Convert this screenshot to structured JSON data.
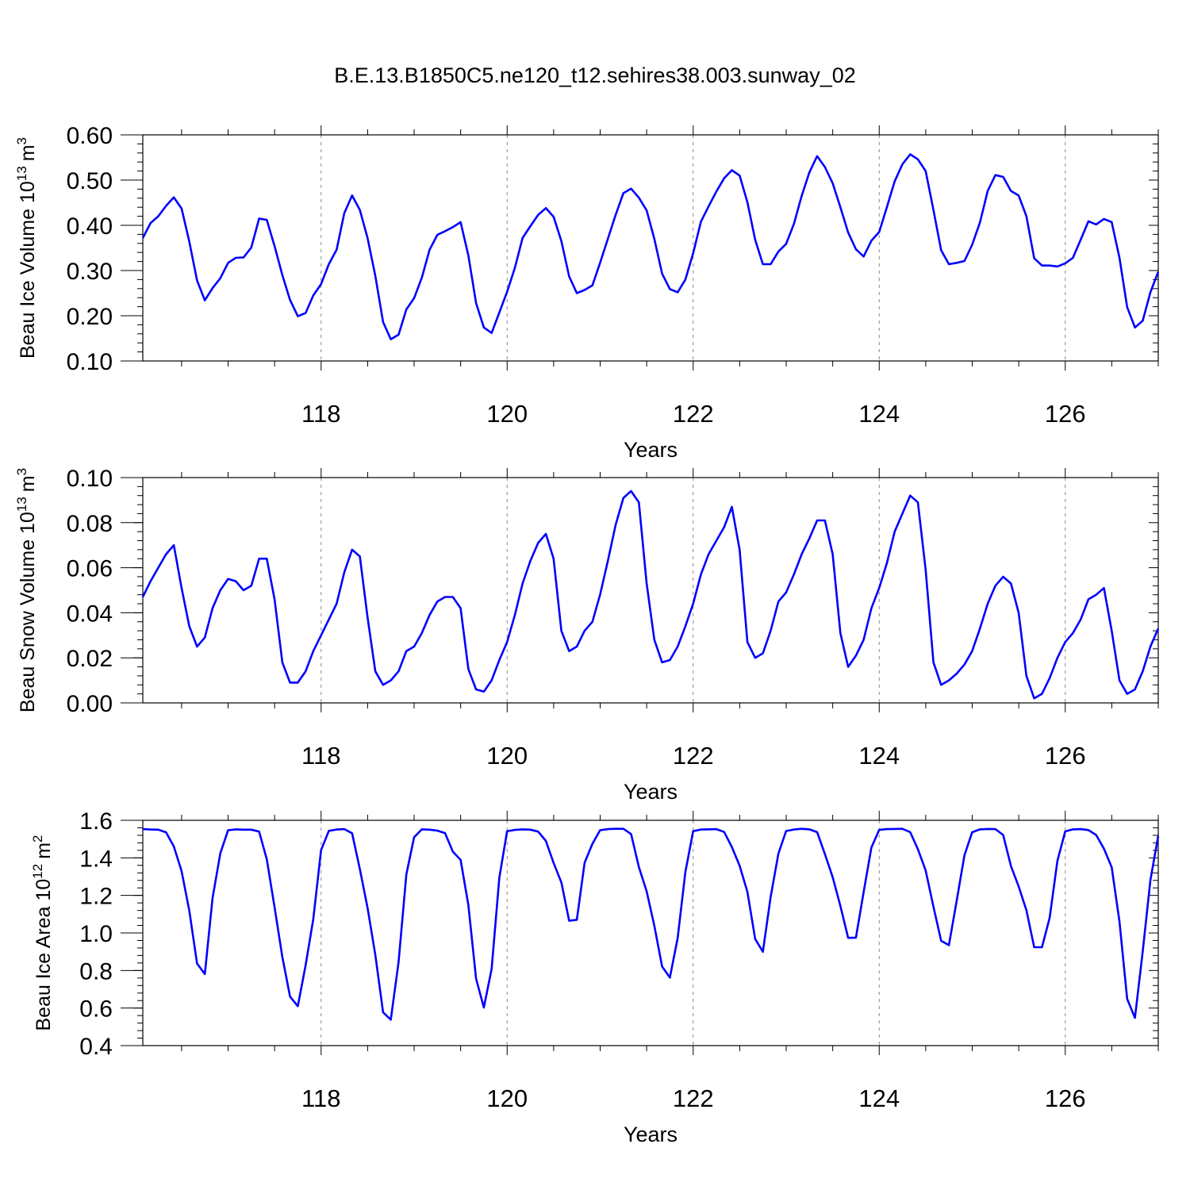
{
  "figure": {
    "title": "B.E.13.B1850C5.ne120_t12.sehires38.003.sunway_02",
    "line_color": "#0000ff",
    "grid_color": "#888888"
  },
  "chart_data": [
    {
      "type": "line",
      "title": "",
      "xlabel": "Years",
      "ylabel": "Beau Ice Volume 10",
      "ylabel_exp": "13",
      "ylabel_unit": "m",
      "ylabel_unit_exp": "3",
      "xlim": [
        116.083,
        127.0
      ],
      "ylim": [
        0.1,
        0.6
      ],
      "xticks": [
        118,
        120,
        122,
        124,
        126
      ],
      "xticklabels": [
        "118",
        "120",
        "122",
        "124",
        "126"
      ],
      "yticks": [
        0.1,
        0.2,
        0.3,
        0.4,
        0.5,
        0.6
      ],
      "yticklabels": [
        "0.10",
        "0.20",
        "0.30",
        "0.40",
        "0.50",
        "0.60"
      ],
      "grid_x": true,
      "x_start": 116.083,
      "x_step": 0.08333,
      "values": [
        0.372,
        0.405,
        0.42,
        0.443,
        0.462,
        0.437,
        0.364,
        0.278,
        0.234,
        0.261,
        0.283,
        0.317,
        0.328,
        0.329,
        0.351,
        0.415,
        0.412,
        0.354,
        0.29,
        0.235,
        0.199,
        0.206,
        0.245,
        0.27,
        0.314,
        0.346,
        0.427,
        0.466,
        0.434,
        0.372,
        0.288,
        0.186,
        0.148,
        0.158,
        0.214,
        0.239,
        0.284,
        0.346,
        0.379,
        0.387,
        0.396,
        0.407,
        0.333,
        0.228,
        0.174,
        0.162,
        0.207,
        0.253,
        0.306,
        0.372,
        0.398,
        0.423,
        0.438,
        0.419,
        0.365,
        0.287,
        0.25,
        0.257,
        0.267,
        0.317,
        0.37,
        0.423,
        0.471,
        0.481,
        0.461,
        0.433,
        0.37,
        0.293,
        0.259,
        0.252,
        0.28,
        0.338,
        0.408,
        0.442,
        0.475,
        0.504,
        0.522,
        0.51,
        0.451,
        0.368,
        0.314,
        0.314,
        0.342,
        0.359,
        0.403,
        0.465,
        0.517,
        0.553,
        0.529,
        0.493,
        0.44,
        0.384,
        0.347,
        0.331,
        0.366,
        0.385,
        0.44,
        0.497,
        0.535,
        0.557,
        0.546,
        0.52,
        0.434,
        0.345,
        0.314,
        0.317,
        0.321,
        0.357,
        0.406,
        0.476,
        0.511,
        0.507,
        0.476,
        0.466,
        0.42,
        0.327,
        0.311,
        0.311,
        0.309,
        0.316,
        0.328,
        0.368,
        0.409,
        0.402,
        0.414,
        0.407,
        0.328,
        0.219,
        0.174,
        0.189,
        0.252,
        0.297
      ]
    },
    {
      "type": "line",
      "title": "",
      "xlabel": "Years",
      "ylabel": "Beau Snow Volume 10",
      "ylabel_exp": "13",
      "ylabel_unit": "m",
      "ylabel_unit_exp": "3",
      "xlim": [
        116.083,
        127.0
      ],
      "ylim": [
        0.0,
        0.1
      ],
      "xticks": [
        118,
        120,
        122,
        124,
        126
      ],
      "xticklabels": [
        "118",
        "120",
        "122",
        "124",
        "126"
      ],
      "yticks": [
        0.0,
        0.02,
        0.04,
        0.06,
        0.08,
        0.1
      ],
      "yticklabels": [
        "0.00",
        "0.02",
        "0.04",
        "0.06",
        "0.08",
        "0.10"
      ],
      "grid_x": true,
      "x_start": 116.083,
      "x_step": 0.08333,
      "values": [
        0.047,
        0.054,
        0.06,
        0.066,
        0.07,
        0.051,
        0.034,
        0.025,
        0.029,
        0.042,
        0.05,
        0.055,
        0.054,
        0.05,
        0.052,
        0.064,
        0.064,
        0.046,
        0.018,
        0.009,
        0.009,
        0.014,
        0.023,
        0.03,
        0.037,
        0.044,
        0.058,
        0.068,
        0.065,
        0.038,
        0.014,
        0.008,
        0.01,
        0.014,
        0.023,
        0.025,
        0.031,
        0.039,
        0.045,
        0.047,
        0.047,
        0.042,
        0.015,
        0.006,
        0.005,
        0.01,
        0.019,
        0.027,
        0.039,
        0.053,
        0.063,
        0.071,
        0.075,
        0.064,
        0.032,
        0.023,
        0.025,
        0.032,
        0.036,
        0.048,
        0.063,
        0.079,
        0.091,
        0.094,
        0.089,
        0.053,
        0.028,
        0.018,
        0.019,
        0.025,
        0.034,
        0.044,
        0.057,
        0.066,
        0.072,
        0.078,
        0.087,
        0.068,
        0.027,
        0.02,
        0.022,
        0.032,
        0.045,
        0.049,
        0.057,
        0.066,
        0.073,
        0.081,
        0.081,
        0.066,
        0.031,
        0.016,
        0.021,
        0.028,
        0.042,
        0.051,
        0.062,
        0.076,
        0.084,
        0.092,
        0.089,
        0.059,
        0.018,
        0.008,
        0.01,
        0.013,
        0.017,
        0.023,
        0.033,
        0.044,
        0.052,
        0.056,
        0.053,
        0.04,
        0.012,
        0.002,
        0.004,
        0.011,
        0.02,
        0.027,
        0.031,
        0.037,
        0.046,
        0.048,
        0.051,
        0.032,
        0.01,
        0.004,
        0.006,
        0.014,
        0.025,
        0.033
      ]
    },
    {
      "type": "line",
      "title": "",
      "xlabel": "Years",
      "ylabel": "Beau Ice Area 10",
      "ylabel_exp": "12",
      "ylabel_unit": "m",
      "ylabel_unit_exp": "2",
      "xlim": [
        116.083,
        127.0
      ],
      "ylim": [
        0.4,
        1.6
      ],
      "xticks": [
        118,
        120,
        122,
        124,
        126
      ],
      "xticklabels": [
        "118",
        "120",
        "122",
        "124",
        "126"
      ],
      "yticks": [
        0.4,
        0.6,
        0.8,
        1.0,
        1.2,
        1.4,
        1.6
      ],
      "yticklabels": [
        "0.4",
        "0.6",
        "0.8",
        "1.0",
        "1.2",
        "1.4",
        "1.6"
      ],
      "grid_x": true,
      "x_start": 116.083,
      "x_step": 0.08333,
      "values": [
        1.553,
        1.551,
        1.55,
        1.536,
        1.461,
        1.329,
        1.119,
        0.837,
        0.781,
        1.185,
        1.424,
        1.547,
        1.552,
        1.55,
        1.55,
        1.54,
        1.392,
        1.137,
        0.872,
        0.661,
        0.61,
        0.827,
        1.074,
        1.441,
        1.544,
        1.551,
        1.553,
        1.531,
        1.34,
        1.134,
        0.883,
        0.577,
        0.538,
        0.845,
        1.312,
        1.51,
        1.552,
        1.55,
        1.545,
        1.532,
        1.433,
        1.389,
        1.148,
        0.756,
        0.603,
        0.808,
        1.294,
        1.542,
        1.549,
        1.552,
        1.55,
        1.54,
        1.49,
        1.373,
        1.269,
        1.065,
        1.07,
        1.374,
        1.474,
        1.547,
        1.553,
        1.555,
        1.555,
        1.527,
        1.351,
        1.222,
        1.038,
        0.821,
        0.762,
        0.973,
        1.324,
        1.542,
        1.551,
        1.552,
        1.553,
        1.538,
        1.458,
        1.358,
        1.219,
        0.968,
        0.9,
        1.192,
        1.423,
        1.543,
        1.551,
        1.555,
        1.552,
        1.537,
        1.42,
        1.297,
        1.144,
        0.974,
        0.975,
        1.217,
        1.455,
        1.549,
        1.553,
        1.554,
        1.555,
        1.537,
        1.446,
        1.333,
        1.14,
        0.958,
        0.935,
        1.171,
        1.414,
        1.536,
        1.552,
        1.554,
        1.553,
        1.522,
        1.356,
        1.248,
        1.121,
        0.924,
        0.924,
        1.081,
        1.385,
        1.541,
        1.552,
        1.553,
        1.548,
        1.522,
        1.449,
        1.35,
        1.061,
        0.649,
        0.548,
        0.901,
        1.282,
        1.516
      ]
    }
  ]
}
